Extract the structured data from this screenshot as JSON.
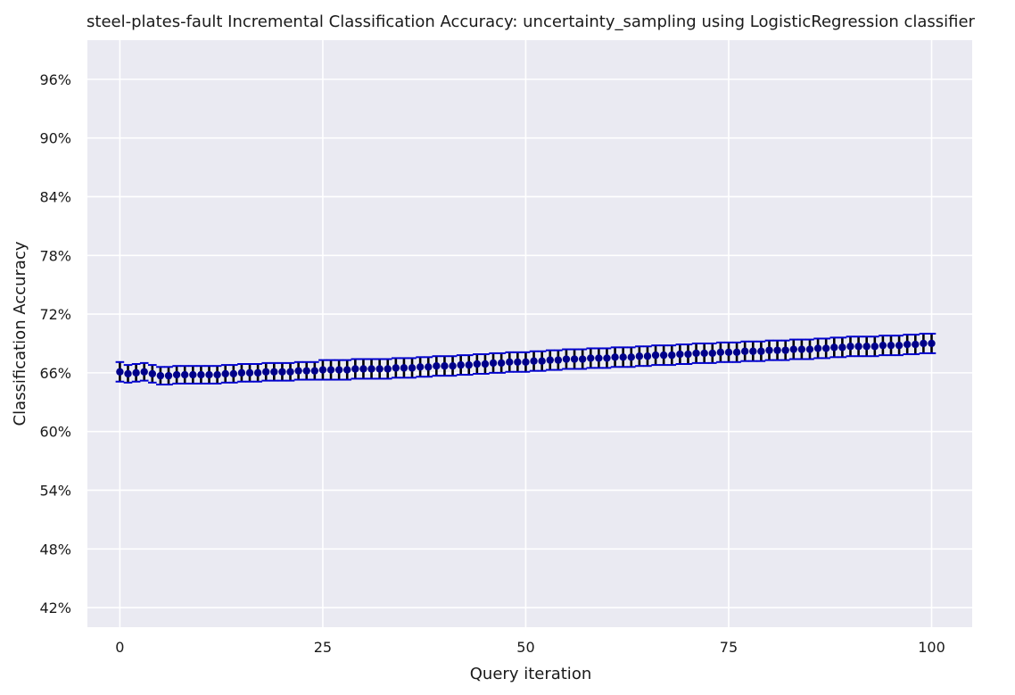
{
  "chart_data": {
    "type": "scatter",
    "title": "steel-plates-fault Incremental Classification Accuracy: uncertainty_sampling using LogisticRegression classifier",
    "xlabel": "Query iteration",
    "ylabel": "Classification Accuracy",
    "xlim": [
      -4,
      105
    ],
    "ylim": [
      0.4,
      1.0
    ],
    "x_ticks": [
      0,
      25,
      50,
      75,
      100
    ],
    "x_tick_labels": [
      "0",
      "25",
      "50",
      "75",
      "100"
    ],
    "y_ticks": [
      0.42,
      0.48,
      0.54,
      0.6,
      0.66,
      0.72,
      0.78,
      0.84,
      0.9,
      0.96
    ],
    "y_tick_labels": [
      "42%",
      "48%",
      "54%",
      "60%",
      "66%",
      "72%",
      "78%",
      "84%",
      "90%",
      "96%"
    ],
    "grid": true,
    "marker_color": "#00008b",
    "errorbar_color": "#000000",
    "cap_color": "#0000cd",
    "background_color": "#eaeaf2",
    "series": [
      {
        "x": [
          0,
          1,
          2,
          3,
          4,
          5,
          6,
          7,
          8,
          9,
          10,
          11,
          12,
          13,
          14,
          15,
          16,
          17,
          18,
          19,
          20,
          21,
          22,
          23,
          24,
          25,
          26,
          27,
          28,
          29,
          30,
          31,
          32,
          33,
          34,
          35,
          36,
          37,
          38,
          39,
          40,
          41,
          42,
          43,
          44,
          45,
          46,
          47,
          48,
          49,
          50,
          51,
          52,
          53,
          54,
          55,
          56,
          57,
          58,
          59,
          60,
          61,
          62,
          63,
          64,
          65,
          66,
          67,
          68,
          69,
          70,
          71,
          72,
          73,
          74,
          75,
          76,
          77,
          78,
          79,
          80,
          81,
          82,
          83,
          84,
          85,
          86,
          87,
          88,
          89,
          90,
          91,
          92,
          93,
          94,
          95,
          96,
          97,
          98,
          99,
          100
        ],
        "y": [
          0.661,
          0.659,
          0.66,
          0.661,
          0.659,
          0.657,
          0.657,
          0.658,
          0.658,
          0.658,
          0.658,
          0.658,
          0.658,
          0.659,
          0.659,
          0.66,
          0.66,
          0.66,
          0.661,
          0.661,
          0.661,
          0.661,
          0.662,
          0.662,
          0.662,
          0.663,
          0.663,
          0.663,
          0.663,
          0.664,
          0.664,
          0.664,
          0.664,
          0.664,
          0.665,
          0.665,
          0.665,
          0.666,
          0.666,
          0.667,
          0.667,
          0.667,
          0.668,
          0.668,
          0.669,
          0.669,
          0.67,
          0.67,
          0.671,
          0.671,
          0.671,
          0.672,
          0.672,
          0.673,
          0.673,
          0.674,
          0.674,
          0.674,
          0.675,
          0.675,
          0.675,
          0.676,
          0.676,
          0.676,
          0.677,
          0.677,
          0.678,
          0.678,
          0.678,
          0.679,
          0.679,
          0.68,
          0.68,
          0.68,
          0.681,
          0.681,
          0.681,
          0.682,
          0.682,
          0.682,
          0.683,
          0.683,
          0.683,
          0.684,
          0.684,
          0.684,
          0.685,
          0.685,
          0.686,
          0.686,
          0.687,
          0.687,
          0.687,
          0.687,
          0.688,
          0.688,
          0.688,
          0.689,
          0.689,
          0.69,
          0.69
        ],
        "err": [
          0.01,
          0.009,
          0.009,
          0.009,
          0.009,
          0.009,
          0.009,
          0.009,
          0.009,
          0.009,
          0.009,
          0.009,
          0.009,
          0.009,
          0.009,
          0.009,
          0.009,
          0.009,
          0.009,
          0.009,
          0.009,
          0.009,
          0.009,
          0.009,
          0.009,
          0.01,
          0.01,
          0.01,
          0.01,
          0.01,
          0.01,
          0.01,
          0.01,
          0.01,
          0.01,
          0.01,
          0.01,
          0.01,
          0.01,
          0.01,
          0.01,
          0.01,
          0.01,
          0.01,
          0.01,
          0.01,
          0.01,
          0.01,
          0.01,
          0.01,
          0.01,
          0.01,
          0.01,
          0.01,
          0.01,
          0.01,
          0.01,
          0.01,
          0.01,
          0.01,
          0.01,
          0.01,
          0.01,
          0.01,
          0.01,
          0.01,
          0.01,
          0.01,
          0.01,
          0.01,
          0.01,
          0.01,
          0.01,
          0.01,
          0.01,
          0.01,
          0.01,
          0.01,
          0.01,
          0.01,
          0.01,
          0.01,
          0.01,
          0.01,
          0.01,
          0.01,
          0.01,
          0.01,
          0.01,
          0.01,
          0.01,
          0.01,
          0.01,
          0.01,
          0.01,
          0.01,
          0.01,
          0.01,
          0.01,
          0.01,
          0.01
        ]
      }
    ]
  }
}
